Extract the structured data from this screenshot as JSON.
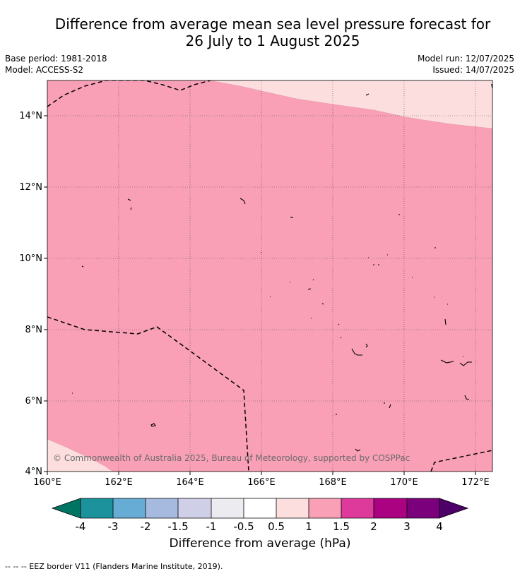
{
  "title_line1": "Difference from average mean sea level pressure forecast for",
  "title_line2": "26 July to 1 August 2025",
  "base_period": "Base period: 1981-2018",
  "model": "Model: ACCESS-S2",
  "model_run": "Model run: 12/07/2025",
  "issued": "Issued: 14/07/2025",
  "copyright": "© Commonwealth of Australia 2025, Bureau of Meteorology, supported by COSPPac",
  "lat_labels": [
    "14°N",
    "12°N",
    "10°N",
    "8°N",
    "6°N",
    "4°N"
  ],
  "lon_labels": [
    "160°E",
    "162°E",
    "164°E",
    "166°E",
    "168°E",
    "170°E",
    "172°E"
  ],
  "colorbar": {
    "title": "Difference from average (hPa)",
    "ticks": [
      "-4",
      "-3",
      "-2",
      "-1.5",
      "-1",
      "-0.5",
      "0.5",
      "1",
      "1.5",
      "2",
      "3",
      "4"
    ],
    "colors": [
      "#007462",
      "#1c939c",
      "#66acd4",
      "#a5bade",
      "#cfd0e8",
      "#ecebf0",
      "#ffffff",
      "#fddede",
      "#f99fb6",
      "#de3a9c",
      "#aa0280",
      "#7a007c",
      "#4d0067"
    ]
  },
  "footer": "--  --  -- EEZ border V11 (Flanders Marine Institute, 2019).",
  "map_colors": {
    "light": "#fddede",
    "medium": "#f99fb6"
  }
}
